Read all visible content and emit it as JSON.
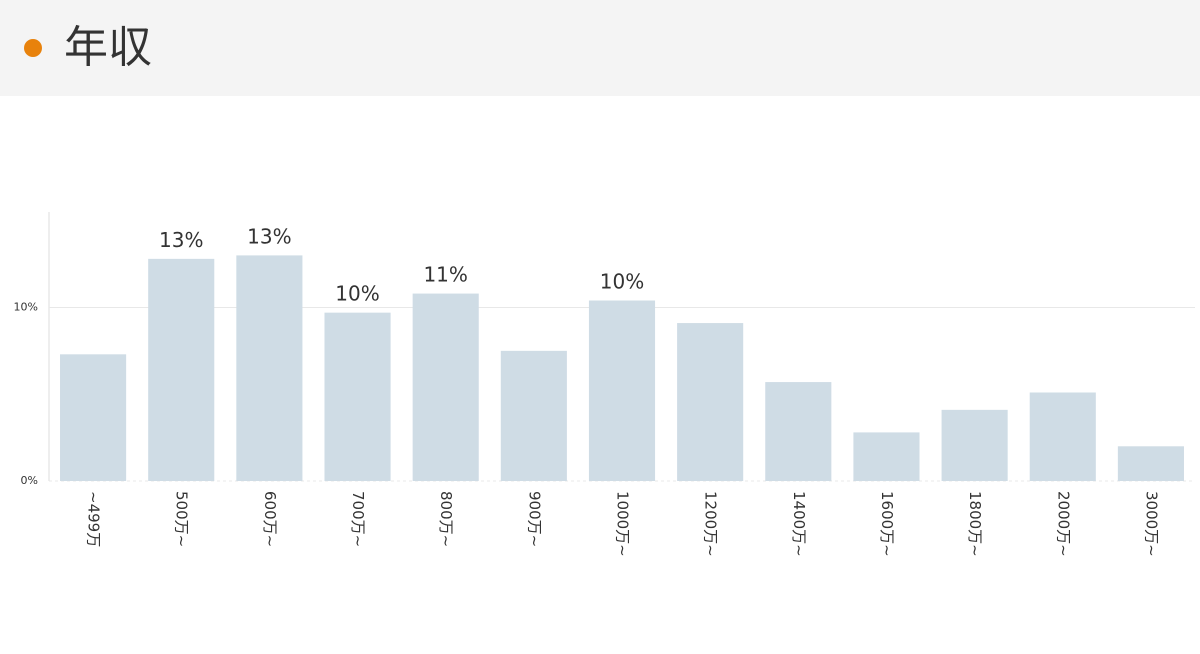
{
  "header": {
    "title": "年収"
  },
  "chart_data": {
    "type": "bar",
    "categories": [
      "~499万",
      "500万~",
      "600万~",
      "700万~",
      "800万~",
      "900万~",
      "1000万~",
      "1200万~",
      "1400万~",
      "1600万~",
      "1800万~",
      "2000万~",
      "3000万~"
    ],
    "values": [
      7.3,
      12.8,
      13.0,
      9.7,
      10.8,
      7.5,
      10.4,
      9.1,
      5.7,
      2.8,
      4.1,
      5.1,
      2.0
    ],
    "value_labels": [
      null,
      "13%",
      "13%",
      "10%",
      "11%",
      null,
      "10%",
      null,
      null,
      null,
      null,
      null,
      null
    ],
    "color": "#cfdce5",
    "ylim": [
      0,
      15.5
    ],
    "yticks": [
      {
        "value": 0,
        "label": "0%"
      },
      {
        "value": 10,
        "label": "10%"
      }
    ],
    "grid": true
  }
}
